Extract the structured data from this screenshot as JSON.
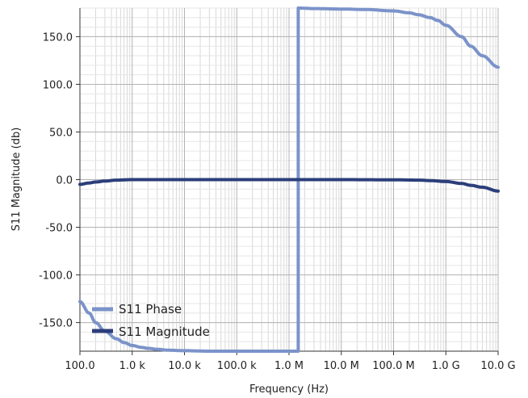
{
  "chart_data": {
    "type": "line",
    "xscale": "log",
    "xlim": [
      100,
      10000000000
    ],
    "ylim": [
      -180,
      180
    ],
    "xlabel": "Frequency (Hz)",
    "ylabel": "S11 Magnitude (db)",
    "grid": true,
    "legend_position": "bottom-left",
    "x_ticks": [
      {
        "value": 100,
        "label": "100.0"
      },
      {
        "value": 1000,
        "label": "1.0 k"
      },
      {
        "value": 10000,
        "label": "10.0 k"
      },
      {
        "value": 100000,
        "label": "100.0 k"
      },
      {
        "value": 1000000,
        "label": "1.0 M"
      },
      {
        "value": 10000000,
        "label": "10.0 M"
      },
      {
        "value": 100000000,
        "label": "100.0 M"
      },
      {
        "value": 1000000000,
        "label": "1.0 G"
      },
      {
        "value": 10000000000,
        "label": "10.0 G"
      }
    ],
    "y_ticks": [
      {
        "value": 150,
        "label": "150.0"
      },
      {
        "value": 100,
        "label": "100.0"
      },
      {
        "value": 50,
        "label": "50.0"
      },
      {
        "value": 0,
        "label": "0.0"
      },
      {
        "value": -50,
        "label": "-50.0"
      },
      {
        "value": -100,
        "label": "-100.0"
      },
      {
        "value": -150,
        "label": "-150.0"
      }
    ],
    "series": [
      {
        "name": "S11 Phase",
        "color": "#7b93c9",
        "x": [
          100,
          150,
          200,
          300,
          500,
          700,
          1000,
          1500,
          2000,
          3000,
          5000,
          10000,
          30000,
          100000,
          300000,
          1000000,
          1500000,
          1500001,
          3000000,
          10000000,
          30000000,
          100000000,
          200000000,
          300000000,
          500000000,
          700000000,
          1000000000,
          2000000000,
          3000000000,
          5000000000,
          10000000000
        ],
        "y": [
          -128,
          -140,
          -150,
          -159,
          -167,
          -171,
          -174,
          -176,
          -177,
          -178,
          -179,
          -179.5,
          -180,
          -180,
          -180,
          -180,
          -180,
          180,
          179.5,
          179,
          178.5,
          177,
          175,
          173,
          170,
          167,
          162,
          150,
          140,
          130,
          118
        ]
      },
      {
        "name": "S11 Magnitude",
        "color": "#2c3e7a",
        "x": [
          100,
          150,
          200,
          300,
          500,
          1000,
          10000,
          100000,
          1000000,
          10000000,
          100000000,
          300000000,
          500000000,
          1000000000,
          2000000000,
          3000000000,
          5000000000,
          10000000000
        ],
        "y": [
          -5,
          -3.5,
          -2.5,
          -1.5,
          -0.5,
          0,
          0,
          0,
          0,
          0,
          -0.2,
          -0.5,
          -1,
          -2,
          -4,
          -6,
          -8,
          -12
        ]
      }
    ]
  }
}
